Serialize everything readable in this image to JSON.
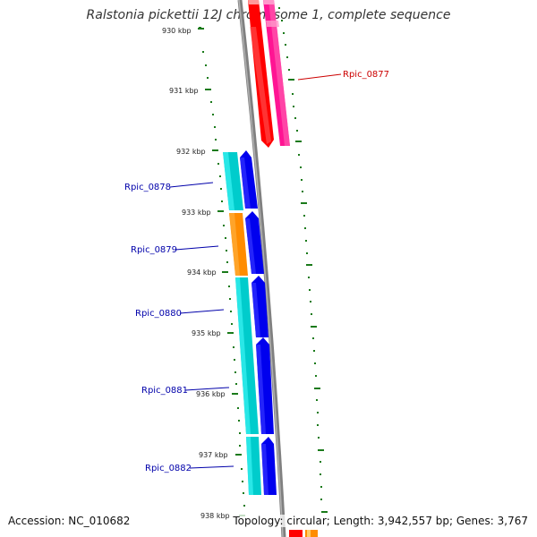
{
  "title": "Ralstonia pickettii 12J chromosome 1, complete sequence",
  "footer": {
    "accession": "Accession: NC_010682",
    "summary": "Topology: circular; Length: 3,942,557 bp; Genes: 3,767"
  },
  "scale_ticks": [
    "930 kbp",
    "931 kbp",
    "932 kbp",
    "933 kbp",
    "934 kbp",
    "935 kbp",
    "936 kbp",
    "937 kbp",
    "938 kbp"
  ],
  "genes": [
    {
      "id": "Rpic_0877",
      "strand": "reverse",
      "color": "#cc0000"
    },
    {
      "id": "Rpic_0878",
      "strand": "forward",
      "color": "#0000aa"
    },
    {
      "id": "Rpic_0879",
      "strand": "forward",
      "color": "#0000aa"
    },
    {
      "id": "Rpic_0880",
      "strand": "forward",
      "color": "#0000aa"
    },
    {
      "id": "Rpic_0881",
      "strand": "forward",
      "color": "#0000aa"
    },
    {
      "id": "Rpic_0882",
      "strand": "forward",
      "color": "#0000aa"
    }
  ],
  "colors": {
    "backbone": "#808080",
    "scale_dots": "#1a7a1a",
    "cds_forward": "#0000ee",
    "cds_reverse": "#ff0000",
    "cog_cyan": "#00cccc",
    "cog_orange": "#ff8c00",
    "cog_pink": "#ff1493"
  }
}
